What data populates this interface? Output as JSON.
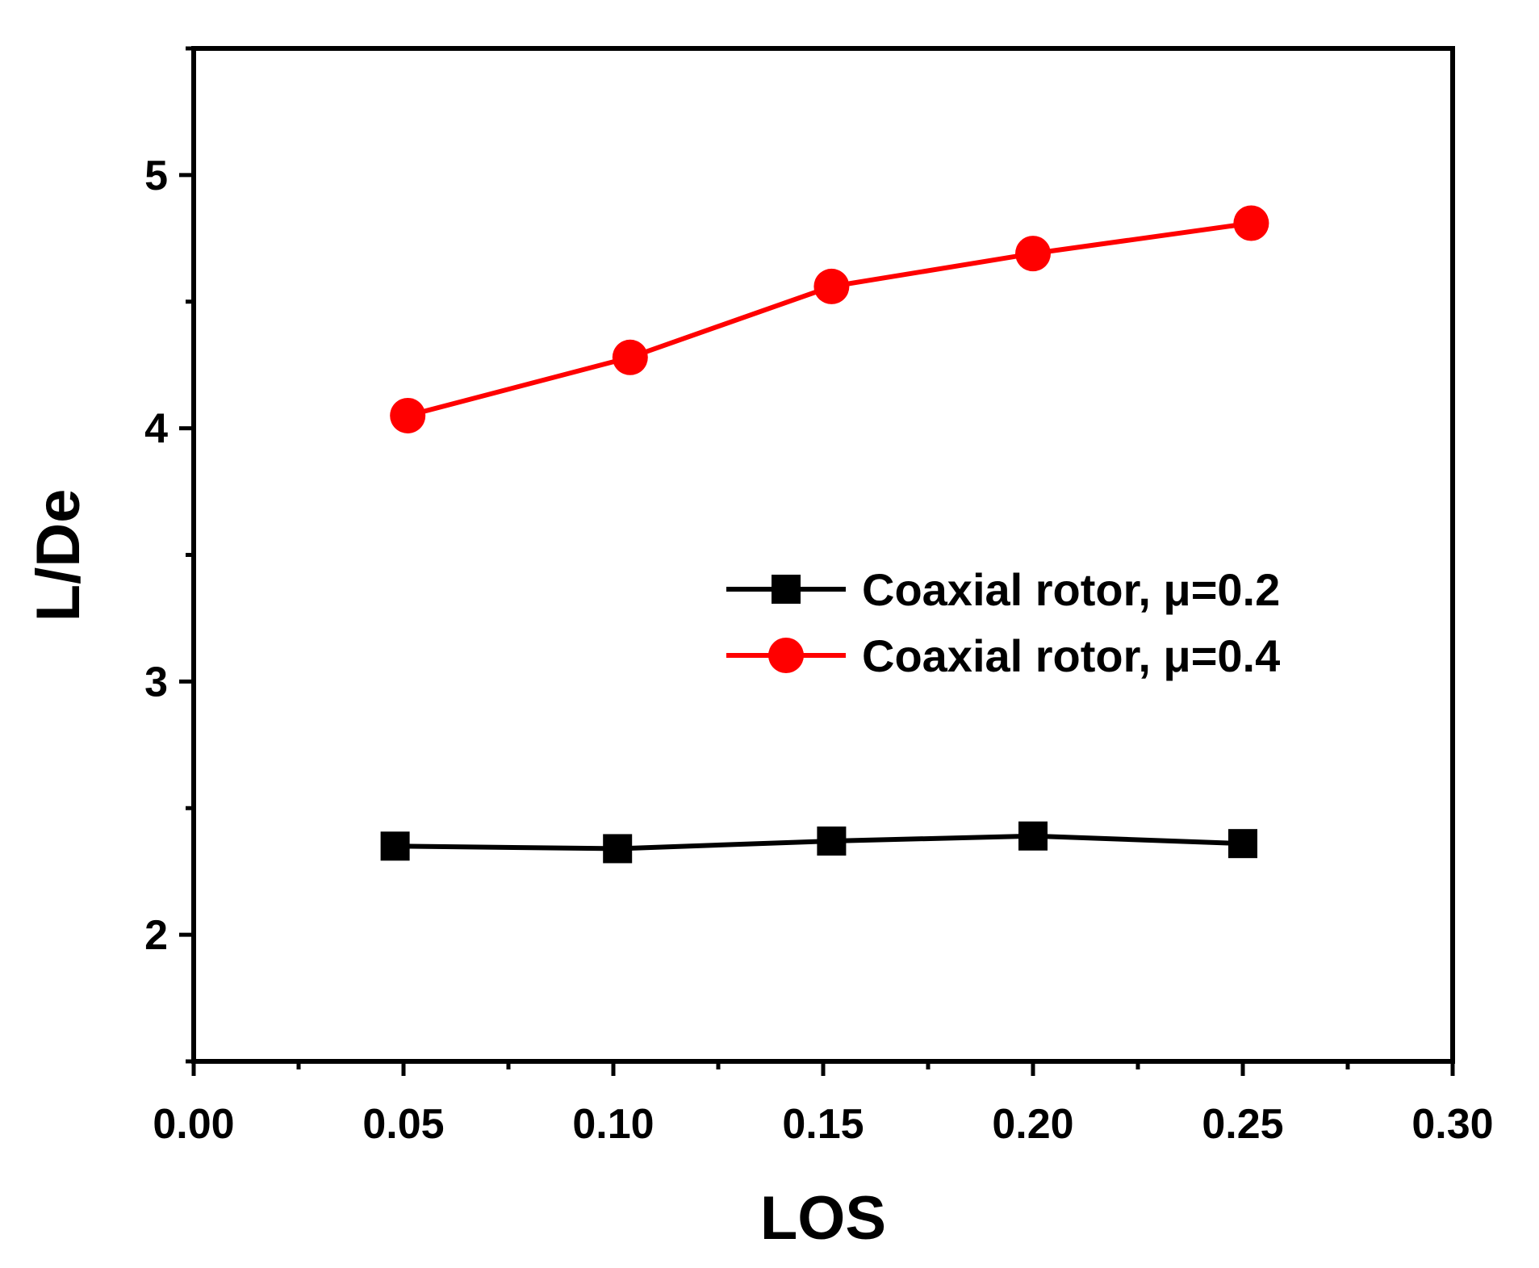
{
  "chart_data": {
    "type": "line",
    "title": "",
    "xlabel": "LOS",
    "ylabel": "L/De",
    "xlim": [
      0.0,
      0.3
    ],
    "ylim": [
      1.5,
      5.5
    ],
    "xticks": [
      0.0,
      0.05,
      0.1,
      0.15,
      0.2,
      0.25,
      0.3
    ],
    "xtick_labels": [
      "0.00",
      "0.05",
      "0.10",
      "0.15",
      "0.20",
      "0.25",
      "0.30"
    ],
    "yticks": [
      2,
      3,
      4,
      5
    ],
    "ytick_labels": [
      "2",
      "3",
      "4",
      "5"
    ],
    "x_minor_ticks": [
      0.025,
      0.075,
      0.125,
      0.175,
      0.225,
      0.275
    ],
    "y_minor_ticks": [
      1.5,
      2.5,
      3.5,
      4.5,
      5.5
    ],
    "grid": false,
    "legend_position": "center-right",
    "series": [
      {
        "name": "Coaxial rotor, μ=0.2",
        "color": "#000000",
        "marker": "square",
        "x": [
          0.048,
          0.101,
          0.152,
          0.2,
          0.25
        ],
        "y": [
          2.35,
          2.34,
          2.37,
          2.39,
          2.36
        ]
      },
      {
        "name": "Coaxial rotor, μ=0.4",
        "color": "#ff0000",
        "marker": "circle",
        "x": [
          0.051,
          0.104,
          0.152,
          0.2,
          0.252
        ],
        "y": [
          4.05,
          4.28,
          4.56,
          4.69,
          4.81
        ]
      }
    ]
  }
}
